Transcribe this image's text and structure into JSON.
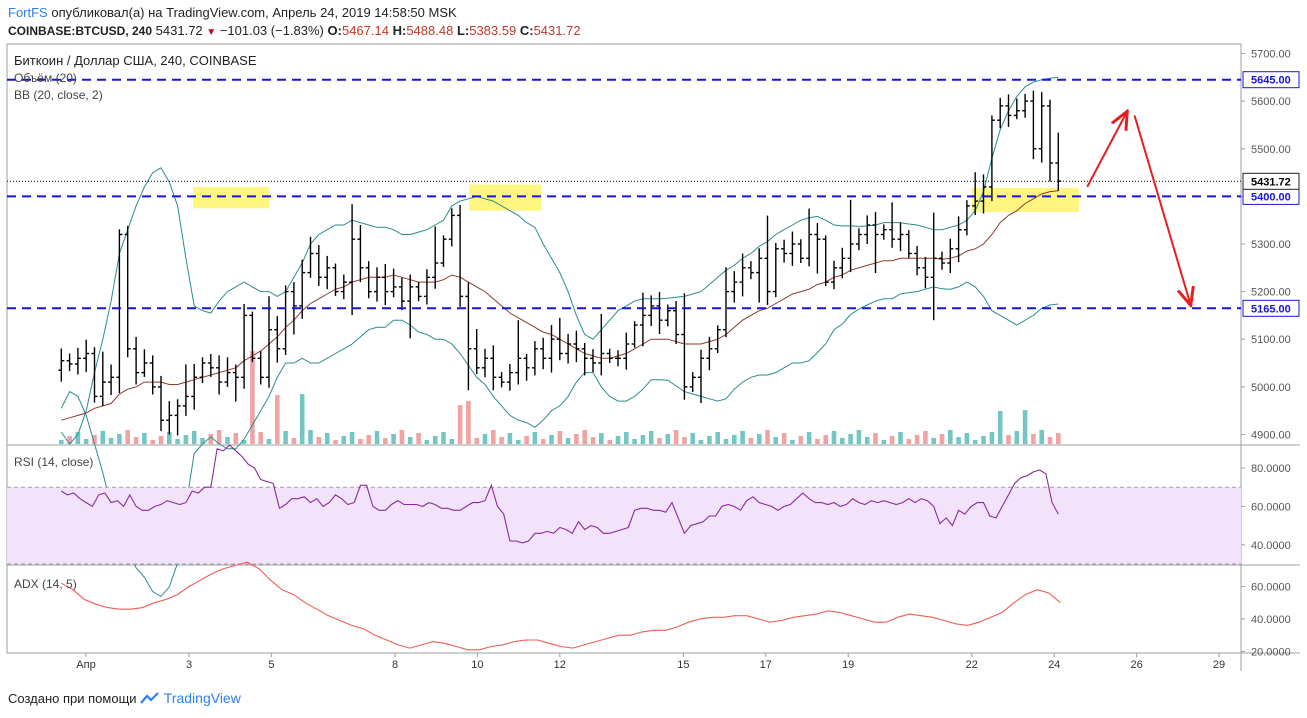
{
  "header": {
    "author": "FortFS",
    "published_text": "опубликовал(а) на TradingView.com, Апрель 24, 2019 14:58:50 MSK",
    "symbol": "COINBASE:BTCUSD, 240",
    "last": "5431.72",
    "change": "−101.03 (−1.83%)",
    "o_label": "O:",
    "o_value": "5467.14",
    "h_label": "H:",
    "h_value": "5488.48",
    "l_label": "L:",
    "l_value": "5383.59",
    "c_label": "C:",
    "c_value": "5431.72"
  },
  "footer": {
    "created_with": "Создано при помощи",
    "brand": "TradingView"
  },
  "colors": {
    "candle": "#000000",
    "bb_band": "#2a8c91",
    "bb_basis": "#8b3a2b",
    "level": "#1515e0",
    "vol_up": "#74c6c4",
    "vol_down": "#f0a3a3",
    "rsi": "#8a2b9a",
    "rsi_fill": "#f3e3fa",
    "adx": "#f25c54",
    "highlight": "#fff36b",
    "arrow": "#e81e1e"
  },
  "chart_data": [
    {
      "type": "candlestick",
      "title": "Биткоин / Доллар США, 240, COINBASE",
      "indicators": [
        "Объём (20)",
        "BB (20, close, 2)"
      ],
      "ylim": [
        4880,
        5720
      ],
      "y_ticks": [
        4900,
        5000,
        5100,
        5200,
        5300,
        5400,
        5500,
        5600,
        5700
      ],
      "x_ticks": [
        {
          "label": "Апр",
          "day": 0.5
        },
        {
          "label": "3",
          "day": 3
        },
        {
          "label": "5",
          "day": 5
        },
        {
          "label": "8",
          "day": 8
        },
        {
          "label": "10",
          "day": 10
        },
        {
          "label": "12",
          "day": 12
        },
        {
          "label": "15",
          "day": 15
        },
        {
          "label": "17",
          "day": 17
        },
        {
          "label": "19",
          "day": 19
        },
        {
          "label": "22",
          "day": 22
        },
        {
          "label": "24",
          "day": 24
        },
        {
          "label": "26",
          "day": 26
        },
        {
          "label": "29",
          "day": 28
        }
      ],
      "levels": [
        {
          "value": 5645,
          "label": "5645.00"
        },
        {
          "value": 5400,
          "label": "5400.00"
        },
        {
          "value": 5165,
          "label": "5165.00"
        }
      ],
      "last_price": {
        "value": 5431.72,
        "label": "5431.72"
      },
      "highlight_zones": [
        {
          "day_from": 3.1,
          "day_to": 4.95,
          "low": 5375,
          "high": 5420
        },
        {
          "day_from": 9.8,
          "day_to": 11.55,
          "low": 5370,
          "high": 5425
        },
        {
          "day_from": 22.0,
          "day_to": 24.6,
          "low": 5367,
          "high": 5418
        }
      ],
      "arrows": [
        {
          "from_day": 24.8,
          "from_price": 5420,
          "to_day": 25.75,
          "to_price": 5575
        },
        {
          "from_day": 25.95,
          "from_price": 5570,
          "to_day": 27.3,
          "to_price": 5175
        }
      ],
      "close": [
        5055,
        5048,
        5060,
        5070,
        4980,
        5010,
        5020,
        5320,
        5080,
        5030,
        5050,
        5000,
        4930,
        4940,
        4960,
        4980,
        5020,
        5050,
        5040,
        5010,
        5030,
        5020,
        5150,
        5060,
        5020,
        5120,
        5080,
        5200,
        5170,
        5240,
        5280,
        5230,
        5250,
        5200,
        5220,
        5310,
        5250,
        5200,
        5230,
        5200,
        5210,
        5180,
        5210,
        5190,
        5230,
        5260,
        5310,
        5360,
        5190,
        5080,
        5040,
        5060,
        5020,
        5010,
        5030,
        5060,
        5040,
        5080,
        5060,
        5100,
        5070,
        5090,
        5080,
        5060,
        5050,
        5070,
        5060,
        5060,
        5090,
        5130,
        5150,
        5170,
        5140,
        5160,
        5110,
        5000,
        5020,
        5060,
        5080,
        5120,
        5200,
        5220,
        5250,
        5240,
        5270,
        5200,
        5290,
        5280,
        5300,
        5270,
        5320,
        5310,
        5220,
        5250,
        5270,
        5300,
        5320,
        5340,
        5320,
        5330,
        5310,
        5320,
        5280,
        5250,
        5230,
        5270,
        5260,
        5290,
        5330,
        5380,
        5390,
        5420,
        5560,
        5590,
        5570,
        5580,
        5600,
        5500,
        5590,
        5470,
        5432
      ],
      "bb_upper": [
        4905,
        4880,
        4900,
        4950,
        5030,
        5100,
        5180,
        5280,
        5330,
        5380,
        5420,
        5450,
        5460,
        5430,
        5380,
        5270,
        5170,
        5160,
        5155,
        5180,
        5200,
        5210,
        5220,
        5210,
        5200,
        5200,
        5190,
        5200,
        5230,
        5260,
        5300,
        5320,
        5330,
        5340,
        5340,
        5350,
        5345,
        5340,
        5335,
        5335,
        5330,
        5320,
        5320,
        5325,
        5330,
        5340,
        5350,
        5380,
        5390,
        5395,
        5400,
        5395,
        5390,
        5380,
        5370,
        5360,
        5345,
        5335,
        5300,
        5270,
        5240,
        5200,
        5150,
        5110,
        5100,
        5120,
        5140,
        5160,
        5170,
        5180,
        5185,
        5185,
        5185,
        5186,
        5188,
        5190,
        5195,
        5200,
        5215,
        5230,
        5245,
        5255,
        5270,
        5280,
        5295,
        5305,
        5320,
        5330,
        5340,
        5350,
        5355,
        5358,
        5350,
        5340,
        5338,
        5338,
        5337,
        5338,
        5340,
        5345,
        5345,
        5345,
        5342,
        5340,
        5335,
        5330,
        5330,
        5335,
        5340,
        5350,
        5370,
        5410,
        5480,
        5540,
        5580,
        5610,
        5630,
        5640,
        5645,
        5648,
        5650
      ],
      "bb_basis": [
        4930,
        4935,
        4940,
        4945,
        4955,
        4960,
        4965,
        4985,
        4995,
        5000,
        5010,
        5010,
        5010,
        5005,
        5005,
        5010,
        5015,
        5020,
        5025,
        5030,
        5035,
        5040,
        5055,
        5065,
        5075,
        5090,
        5105,
        5125,
        5140,
        5160,
        5175,
        5185,
        5195,
        5205,
        5210,
        5220,
        5225,
        5230,
        5230,
        5230,
        5235,
        5230,
        5225,
        5220,
        5220,
        5220,
        5225,
        5235,
        5230,
        5220,
        5210,
        5200,
        5185,
        5170,
        5155,
        5145,
        5135,
        5125,
        5115,
        5110,
        5100,
        5090,
        5080,
        5070,
        5065,
        5060,
        5060,
        5065,
        5070,
        5080,
        5090,
        5100,
        5100,
        5100,
        5095,
        5090,
        5090,
        5090,
        5095,
        5100,
        5110,
        5125,
        5140,
        5150,
        5160,
        5165,
        5175,
        5185,
        5195,
        5200,
        5205,
        5215,
        5220,
        5230,
        5235,
        5245,
        5250,
        5255,
        5260,
        5265,
        5265,
        5270,
        5270,
        5270,
        5270,
        5270,
        5268,
        5270,
        5275,
        5285,
        5290,
        5300,
        5320,
        5345,
        5360,
        5370,
        5385,
        5395,
        5405,
        5410,
        5412
      ],
      "bb_lower": [
        4955,
        4990,
        4980,
        4940,
        4880,
        4820,
        4750,
        4690,
        4660,
        4620,
        4600,
        4570,
        4560,
        4580,
        4630,
        4750,
        4860,
        4880,
        4895,
        4880,
        4870,
        4870,
        4890,
        4920,
        4950,
        4980,
        5020,
        5050,
        5050,
        5060,
        5050,
        5050,
        5060,
        5070,
        5080,
        5090,
        5105,
        5120,
        5125,
        5125,
        5140,
        5140,
        5130,
        5115,
        5110,
        5100,
        5100,
        5090,
        5070,
        5045,
        5020,
        5005,
        4980,
        4960,
        4940,
        4930,
        4925,
        4915,
        4930,
        4950,
        4960,
        4980,
        5010,
        5030,
        5030,
        5000,
        4980,
        4970,
        4970,
        4980,
        4995,
        5015,
        5015,
        5014,
        5002,
        4990,
        4985,
        4980,
        4975,
        4970,
        4975,
        4995,
        5010,
        5020,
        5025,
        5025,
        5030,
        5040,
        5050,
        5050,
        5055,
        5072,
        5090,
        5120,
        5132,
        5152,
        5163,
        5172,
        5180,
        5185,
        5185,
        5195,
        5198,
        5200,
        5205,
        5210,
        5206,
        5205,
        5210,
        5220,
        5210,
        5190,
        5160,
        5150,
        5140,
        5130,
        5140,
        5150,
        5165,
        5172,
        5174
      ]
    },
    {
      "type": "line",
      "title": "RSI (14, close)",
      "ylim": [
        30,
        92
      ],
      "y_ticks": [
        {
          "value": 40,
          "label": "40.0000"
        },
        {
          "value": 60,
          "label": "60.0000"
        },
        {
          "value": 80,
          "label": "80.0000"
        }
      ],
      "band": [
        30,
        70
      ],
      "values": [
        68,
        66,
        67,
        64,
        62,
        60,
        66,
        67,
        62,
        63,
        60,
        66,
        60,
        58,
        58,
        60,
        61,
        63,
        62,
        61,
        62,
        68,
        67,
        70,
        70,
        90,
        89,
        92,
        89,
        86,
        82,
        80,
        74,
        73,
        72,
        59,
        61,
        64,
        64,
        65,
        62,
        64,
        60,
        62,
        66,
        64,
        61,
        62,
        71,
        71,
        60,
        58,
        58,
        61,
        63,
        61,
        61,
        61,
        60,
        62,
        61,
        59,
        59,
        58,
        58,
        60,
        62,
        62,
        63,
        71,
        60,
        56,
        42,
        42,
        41,
        42,
        46,
        46,
        47,
        46,
        49,
        48,
        46,
        52,
        48,
        50,
        49,
        46,
        46,
        47,
        48,
        49,
        58,
        59,
        59,
        58,
        58,
        57,
        62,
        54,
        46,
        50,
        51,
        52,
        55,
        55,
        60,
        61,
        60,
        58,
        63,
        65,
        62,
        61,
        60,
        58,
        60,
        61,
        64,
        67,
        64,
        62,
        62,
        61,
        62,
        60,
        61,
        64,
        62,
        61,
        63,
        62,
        63,
        62,
        61,
        62,
        64,
        62,
        64,
        63,
        60,
        51,
        54,
        50,
        58,
        56,
        60,
        62,
        62,
        55,
        54,
        60,
        66,
        72,
        75,
        76,
        78,
        79,
        77,
        62,
        56
      ],
      "x_from_day": -0.1,
      "x_to_day": 24.1
    },
    {
      "type": "line",
      "title": "ADX (14, 5)",
      "ylim": [
        19,
        72
      ],
      "y_ticks": [
        {
          "value": 20,
          "label": "20.0000"
        },
        {
          "value": 40,
          "label": "40.0000"
        },
        {
          "value": 60,
          "label": "60.0000"
        }
      ],
      "values": [
        62,
        58,
        52,
        49,
        47,
        46,
        46,
        47,
        50,
        52,
        55,
        60,
        64,
        68,
        71,
        73,
        75,
        71,
        64,
        58,
        55,
        50,
        46,
        42,
        39,
        36,
        34,
        30,
        27,
        24,
        22,
        24,
        26,
        25,
        23,
        21,
        21,
        23,
        24,
        26,
        27,
        27,
        25,
        23,
        22,
        24,
        26,
        28,
        30,
        30,
        32,
        33,
        33,
        35,
        38,
        40,
        41,
        41,
        42,
        42,
        40,
        38,
        39,
        41,
        42,
        43,
        45,
        44,
        42,
        40,
        38,
        38,
        41,
        43,
        42,
        41,
        39,
        37,
        36,
        38,
        41,
        44,
        50,
        55,
        58,
        56,
        50
      ],
      "x_from_day": -0.1,
      "x_to_day": 24.15
    }
  ]
}
